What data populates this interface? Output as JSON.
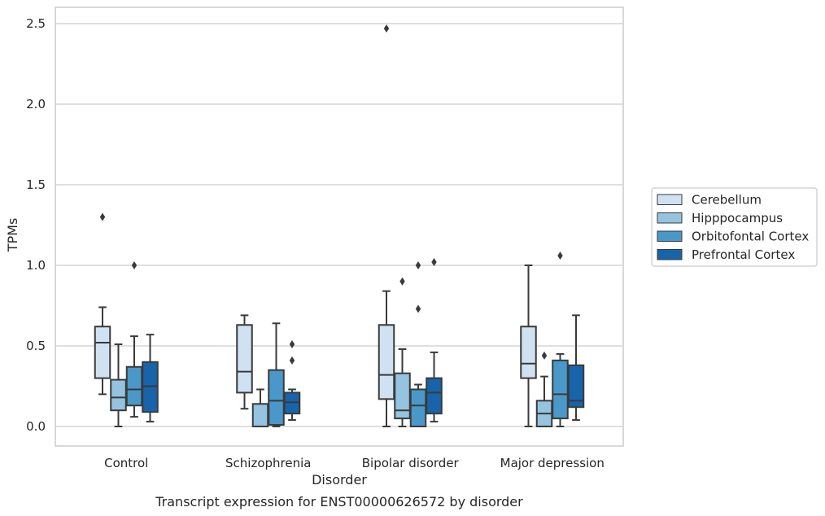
{
  "chart_data": {
    "type": "box",
    "xlabel": "Disorder",
    "ylabel": "TPMs",
    "caption": "Transcript expression for ENST00000626572 by disorder",
    "ylim": [
      -0.12,
      2.6
    ],
    "yticks": [
      "0.0",
      "0.5",
      "1.0",
      "1.5",
      "2.0",
      "2.5"
    ],
    "grid": true,
    "legend_position": "right",
    "categories": [
      "Control",
      "Schizophrenia",
      "Bipolar disorder",
      "Major depression"
    ],
    "series": [
      {
        "name": "Cerebellum",
        "color": "#d0e1f2",
        "boxes": [
          {
            "whislo": 0.2,
            "q1": 0.3,
            "med": 0.52,
            "q3": 0.62,
            "whishi": 0.74,
            "fliers": [
              1.3
            ]
          },
          {
            "whislo": 0.11,
            "q1": 0.21,
            "med": 0.34,
            "q3": 0.63,
            "whishi": 0.69,
            "fliers": []
          },
          {
            "whislo": 0.0,
            "q1": 0.17,
            "med": 0.32,
            "q3": 0.63,
            "whishi": 0.84,
            "fliers": [
              2.47
            ]
          },
          {
            "whislo": 0.0,
            "q1": 0.3,
            "med": 0.39,
            "q3": 0.62,
            "whishi": 1.0,
            "fliers": []
          }
        ]
      },
      {
        "name": "Hipppocampus",
        "color": "#94c4df",
        "boxes": [
          {
            "whislo": 0.0,
            "q1": 0.1,
            "med": 0.18,
            "q3": 0.29,
            "whishi": 0.51,
            "fliers": []
          },
          {
            "whislo": 0.0,
            "q1": 0.0,
            "med": 0.0,
            "q3": 0.14,
            "whishi": 0.23,
            "fliers": []
          },
          {
            "whislo": 0.0,
            "q1": 0.05,
            "med": 0.1,
            "q3": 0.33,
            "whishi": 0.48,
            "fliers": [
              0.9
            ]
          },
          {
            "whislo": 0.0,
            "q1": 0.0,
            "med": 0.08,
            "q3": 0.16,
            "whishi": 0.31,
            "fliers": [
              0.44
            ]
          }
        ]
      },
      {
        "name": "Orbitofontal Cortex",
        "color": "#4a98c9",
        "boxes": [
          {
            "whislo": 0.06,
            "q1": 0.13,
            "med": 0.23,
            "q3": 0.37,
            "whishi": 0.56,
            "fliers": [
              1.0
            ]
          },
          {
            "whislo": 0.0,
            "q1": 0.01,
            "med": 0.16,
            "q3": 0.35,
            "whishi": 0.64,
            "fliers": []
          },
          {
            "whislo": 0.0,
            "q1": 0.0,
            "med": 0.13,
            "q3": 0.23,
            "whishi": 0.26,
            "fliers": [
              0.73,
              1.0
            ]
          },
          {
            "whislo": 0.0,
            "q1": 0.05,
            "med": 0.2,
            "q3": 0.41,
            "whishi": 0.45,
            "fliers": [
              1.06
            ]
          }
        ]
      },
      {
        "name": "Prefrontal Cortex",
        "color": "#1764ab",
        "boxes": [
          {
            "whislo": 0.03,
            "q1": 0.09,
            "med": 0.25,
            "q3": 0.4,
            "whishi": 0.57,
            "fliers": []
          },
          {
            "whislo": 0.04,
            "q1": 0.08,
            "med": 0.15,
            "q3": 0.21,
            "whishi": 0.23,
            "fliers": [
              0.41,
              0.51
            ]
          },
          {
            "whislo": 0.03,
            "q1": 0.08,
            "med": 0.21,
            "q3": 0.3,
            "whishi": 0.46,
            "fliers": [
              1.02
            ]
          },
          {
            "whislo": 0.04,
            "q1": 0.12,
            "med": 0.16,
            "q3": 0.38,
            "whishi": 0.69,
            "fliers": []
          }
        ]
      }
    ]
  }
}
